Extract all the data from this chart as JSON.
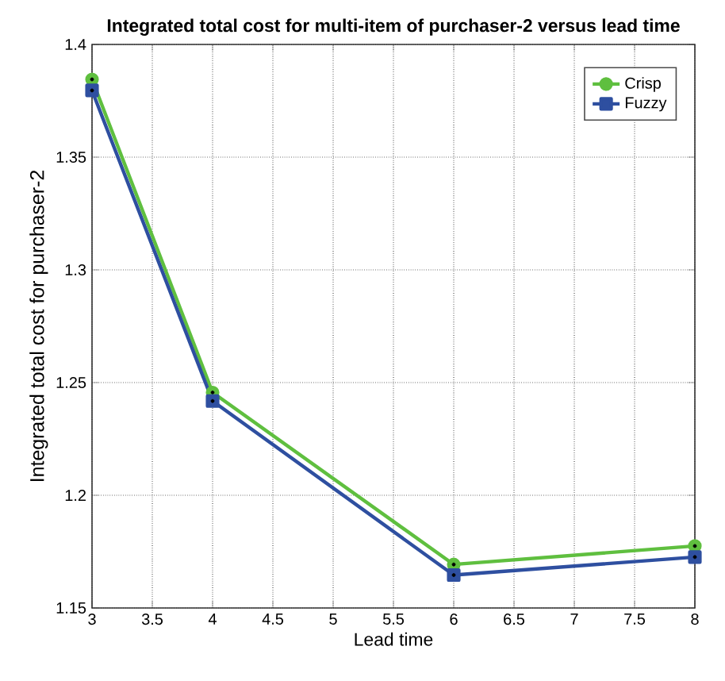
{
  "chart_data": {
    "type": "line",
    "title": "Integrated total cost for multi-item of purchaser-2 versus lead time",
    "xlabel": "Lead time",
    "ylabel": "Integrated total cost for purchaser-2",
    "x": [
      3,
      4,
      6,
      8
    ],
    "series": [
      {
        "name": "Crisp",
        "color": "#5fbf3f",
        "marker": "circle",
        "values": [
          1.3845,
          1.2456,
          1.1693,
          1.1775
        ]
      },
      {
        "name": "Fuzzy",
        "color": "#2e4fa0",
        "marker": "square",
        "values": [
          1.3796,
          1.2418,
          1.1646,
          1.1726
        ]
      }
    ],
    "xlim": [
      3,
      8
    ],
    "xticks": [
      3,
      3.5,
      4,
      4.5,
      5,
      5.5,
      6,
      6.5,
      7,
      7.5,
      8
    ],
    "ylim": [
      1.15,
      1.4
    ],
    "yticks": [
      1.15,
      1.2,
      1.25,
      1.3,
      1.35,
      1.4
    ],
    "grid": true,
    "legend": "top right",
    "line_style": "solid"
  }
}
